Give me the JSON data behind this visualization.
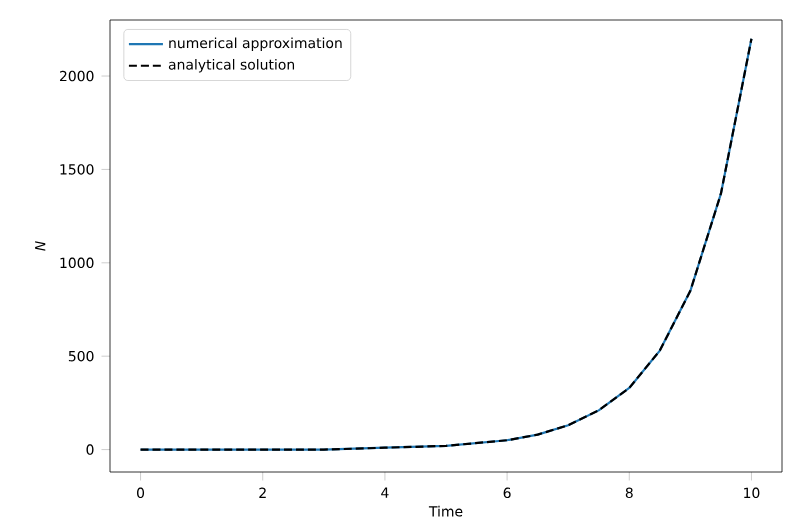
{
  "chart_data": {
    "type": "line",
    "xlabel": "Time",
    "ylabel": "N",
    "xlim": [
      -0.5,
      10.5
    ],
    "ylim": [
      -120,
      2300
    ],
    "xticks": [
      0,
      2,
      4,
      6,
      8,
      10
    ],
    "yticks": [
      0,
      500,
      1000,
      1500,
      2000
    ],
    "grid": false,
    "legend": "top left",
    "marker": "none",
    "x": [
      0,
      2,
      3,
      4,
      5,
      6,
      6.5,
      7,
      7.5,
      8,
      8.5,
      9,
      9.5,
      10
    ],
    "series": [
      {
        "name": "numerical approximation",
        "color": "#1f77b4",
        "line_style": "solid",
        "values": [
          0,
          0,
          0,
          10,
          20,
          50,
          80,
          130,
          210,
          330,
          530,
          850,
          1370,
          2200
        ]
      },
      {
        "name": "analytical solution",
        "color": "#000000",
        "line_style": "dashed",
        "values": [
          0,
          0,
          0,
          10,
          20,
          50,
          80,
          130,
          210,
          330,
          530,
          850,
          1370,
          2200
        ]
      }
    ]
  }
}
